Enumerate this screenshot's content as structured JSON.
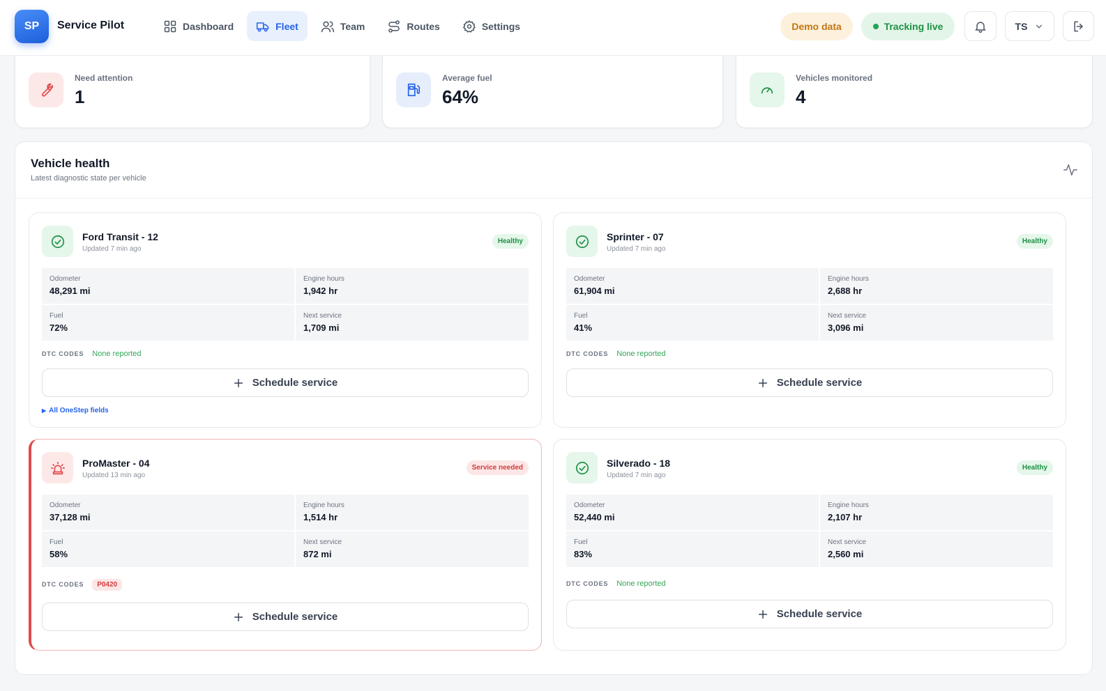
{
  "header": {
    "logo_initials": "SP",
    "app_name": "Service Pilot",
    "nav": [
      {
        "label": "Dashboard",
        "icon": "grid-icon"
      },
      {
        "label": "Fleet",
        "icon": "truck-icon",
        "active": true
      },
      {
        "label": "Team",
        "icon": "users-icon"
      },
      {
        "label": "Routes",
        "icon": "route-icon"
      },
      {
        "label": "Settings",
        "icon": "gear-icon"
      }
    ],
    "demo_label": "Demo data",
    "tracking_label": "Tracking live",
    "user_initials": "TS"
  },
  "stats": [
    {
      "label": "Need attention",
      "value": "1",
      "icon": "wrench-icon",
      "color": "#e04b4b"
    },
    {
      "label": "Average fuel",
      "value": "64%",
      "icon": "fuel-icon",
      "color": "#2563eb"
    },
    {
      "label": "Vehicles monitored",
      "value": "4",
      "icon": "gauge-icon",
      "color": "#1e9146"
    }
  ],
  "panel": {
    "title": "Vehicle health",
    "subtitle": "Latest diagnostic state per vehicle"
  },
  "labels": {
    "odometer": "Odometer",
    "engine_hours": "Engine hours",
    "fuel": "Fuel",
    "next_service": "Next service",
    "dtc": "DTC CODES",
    "none_reported": "None reported",
    "schedule": "Schedule service",
    "onestep": "All OneStep fields"
  },
  "vehicles": [
    {
      "name": "Ford Transit - 12",
      "updated": "Updated 7 min ago",
      "status": "Healthy",
      "odometer": "48,291 mi",
      "engine_hours": "1,942 hr",
      "fuel": "72%",
      "next_service": "1,709 mi",
      "dtc": []
    },
    {
      "name": "Sprinter - 07",
      "updated": "Updated 7 min ago",
      "status": "Healthy",
      "odometer": "61,904 mi",
      "engine_hours": "2,688 hr",
      "fuel": "41%",
      "next_service": "3,096 mi",
      "dtc": []
    },
    {
      "name": "ProMaster - 04",
      "updated": "Updated 13 min ago",
      "status": "Service needed",
      "odometer": "37,128 mi",
      "engine_hours": "1,514 hr",
      "fuel": "58%",
      "next_service": "872 mi",
      "dtc": [
        "P0420"
      ]
    },
    {
      "name": "Silverado - 18",
      "updated": "Updated 7 min ago",
      "status": "Healthy",
      "odometer": "52,440 mi",
      "engine_hours": "2,107 hr",
      "fuel": "83%",
      "next_service": "2,560 mi",
      "dtc": []
    }
  ]
}
